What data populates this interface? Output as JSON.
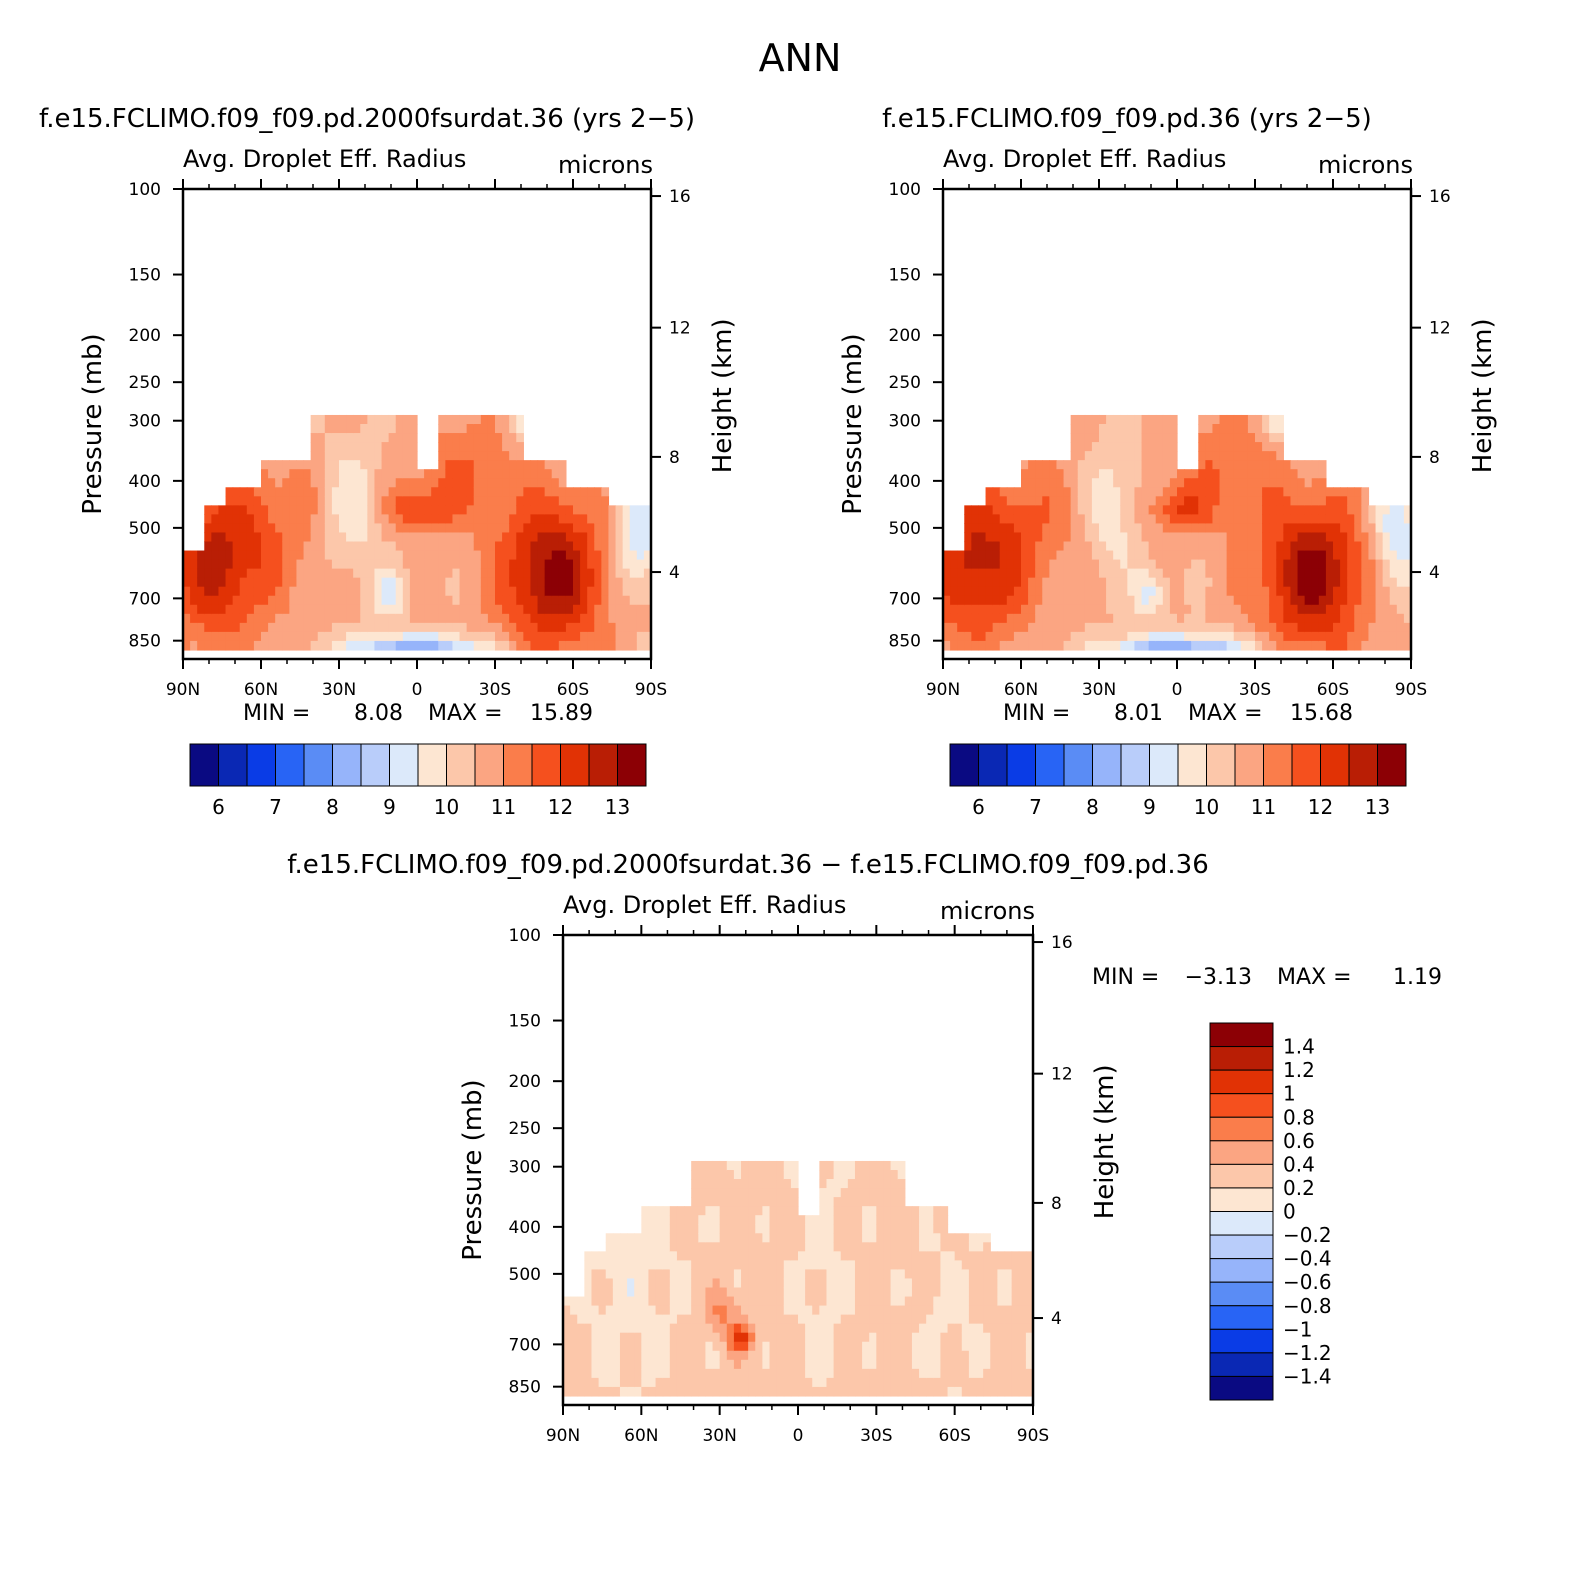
{
  "figure": {
    "title": "ANN"
  },
  "chart_data": [
    {
      "id": "p1",
      "type": "heatmap",
      "title": "f.e15.FCLIMO.f09_f09.pd.2000fsurdat.36 (yrs 2−5)",
      "subtitle_left": "Avg. Droplet Eff. Radius",
      "subtitle_right": "microns",
      "ylabel": "Pressure (mb)",
      "y2label": "Height (km)",
      "xticks": [
        "90N",
        "60N",
        "30N",
        "0",
        "30S",
        "60S",
        "90S"
      ],
      "yticks": [
        "100",
        "150",
        "200",
        "250",
        "300",
        "400",
        "500",
        "700",
        "850"
      ],
      "y2ticks": [
        "16",
        "12",
        "8",
        "4"
      ],
      "min_label": "MIN =",
      "min_value": "8.08",
      "max_label": "MAX =",
      "max_value": "15.89",
      "colorbar": {
        "labels": [
          "6",
          "7",
          "8",
          "9",
          "10",
          "11",
          "12",
          "13"
        ],
        "colors": [
          "#0a0a82",
          "#0a28b4",
          "#0a3ce6",
          "#2864f5",
          "#5a8cf5",
          "#96b4fa",
          "#b9cdfa",
          "#dce9fa",
          "#fde6d2",
          "#fcc7aa",
          "#fba582",
          "#fa7d4b",
          "#f5501e",
          "#e13205",
          "#b91e05",
          "#8c0005"
        ]
      }
    },
    {
      "id": "p2",
      "type": "heatmap",
      "title": "f.e15.FCLIMO.f09_f09.pd.36 (yrs 2−5)",
      "subtitle_left": "Avg. Droplet Eff. Radius",
      "subtitle_right": "microns",
      "ylabel": "Pressure (mb)",
      "y2label": "Height (km)",
      "xticks": [
        "90N",
        "60N",
        "30N",
        "0",
        "30S",
        "60S",
        "90S"
      ],
      "yticks": [
        "100",
        "150",
        "200",
        "250",
        "300",
        "400",
        "500",
        "700",
        "850"
      ],
      "y2ticks": [
        "16",
        "12",
        "8",
        "4"
      ],
      "min_label": "MIN =",
      "min_value": "8.01",
      "max_label": "MAX =",
      "max_value": "15.68",
      "colorbar": {
        "labels": [
          "6",
          "7",
          "8",
          "9",
          "10",
          "11",
          "12",
          "13"
        ],
        "colors": [
          "#0a0a82",
          "#0a28b4",
          "#0a3ce6",
          "#2864f5",
          "#5a8cf5",
          "#96b4fa",
          "#b9cdfa",
          "#dce9fa",
          "#fde6d2",
          "#fcc7aa",
          "#fba582",
          "#fa7d4b",
          "#f5501e",
          "#e13205",
          "#b91e05",
          "#8c0005"
        ]
      }
    },
    {
      "id": "p3",
      "type": "heatmap",
      "title": "f.e15.FCLIMO.f09_f09.pd.2000fsurdat.36 − f.e15.FCLIMO.f09_f09.pd.36",
      "subtitle_left": "Avg. Droplet Eff. Radius",
      "subtitle_right": "microns",
      "ylabel": "Pressure (mb)",
      "y2label": "Height (km)",
      "xticks": [
        "90N",
        "60N",
        "30N",
        "0",
        "30S",
        "60S",
        "90S"
      ],
      "yticks": [
        "100",
        "150",
        "200",
        "250",
        "300",
        "400",
        "500",
        "700",
        "850"
      ],
      "y2ticks": [
        "16",
        "12",
        "8",
        "4"
      ],
      "min_label": "MIN =",
      "min_value": "−3.13",
      "max_label": "MAX =",
      "max_value": "1.19",
      "colorbar": {
        "labels": [
          "1.4",
          "1.2",
          "1",
          "0.8",
          "0.6",
          "0.4",
          "0.2",
          "0",
          "−0.2",
          "−0.4",
          "−0.6",
          "−0.8",
          "−1",
          "−1.2",
          "−1.4"
        ],
        "colors": [
          "#8c0005",
          "#b91e05",
          "#e13205",
          "#f5501e",
          "#fa7d4b",
          "#fba582",
          "#fcc7aa",
          "#fde6d2",
          "#dce9fa",
          "#b9cdfa",
          "#96b4fa",
          "#5a8cf5",
          "#2864f5",
          "#0a3ce6",
          "#0a28b4",
          "#0a0a82"
        ]
      }
    }
  ]
}
